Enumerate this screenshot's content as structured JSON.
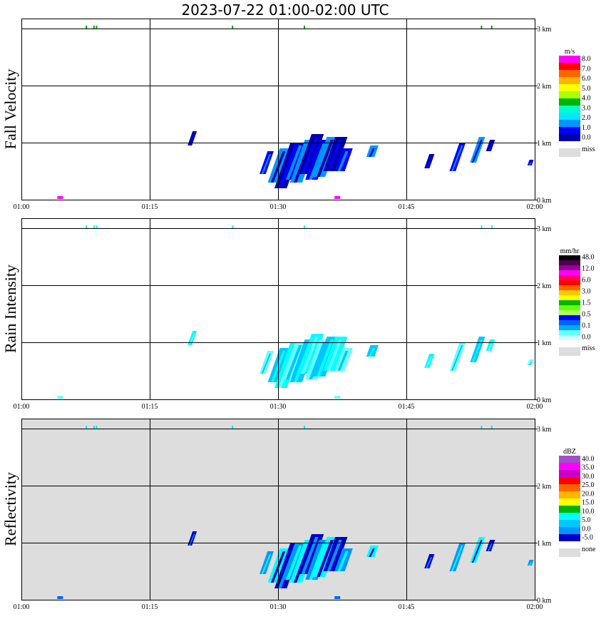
{
  "title": "2023-07-22   01:00-02:00 UTC",
  "chart_data": [
    {
      "type": "heatmap",
      "ylabel": "Fall Velocity",
      "xticks": [
        "01:00",
        "01:15",
        "01:30",
        "01:45",
        "02:00"
      ],
      "yticks": [
        "0 km",
        "1 km",
        "2 km",
        "3 km"
      ],
      "xlim": [
        "01:00",
        "02:00"
      ],
      "ylim_km": [
        0,
        3.2
      ],
      "background": "#ffffff",
      "colorbar": {
        "unit": "m/s",
        "labels": [
          "8.0",
          "7.0",
          "6.0",
          "5.0",
          "4.0",
          "3.0",
          "2.0",
          "1.0",
          "0.0"
        ],
        "colors": [
          "#ff00ff",
          "#ff0000",
          "#ff6400",
          "#ffb400",
          "#ffff00",
          "#aaff00",
          "#00b400",
          "#00ffc8",
          "#00e6ff",
          "#0096ff",
          "#0000ff",
          "#0000aa"
        ],
        "miss_label": "miss",
        "miss_color": "#dddddd"
      },
      "echo_colors": [
        "#0000aa",
        "#0000ff",
        "#0096ff"
      ],
      "top_marks_color": "#00a000",
      "speck_color": "#ff00ff"
    },
    {
      "type": "heatmap",
      "ylabel": "Rain Intensity",
      "xticks": [
        "01:00",
        "01:15",
        "01:30",
        "01:45",
        "02:00"
      ],
      "yticks": [
        "0 km",
        "1 km",
        "2 km",
        "3 km"
      ],
      "xlim": [
        "01:00",
        "02:00"
      ],
      "ylim_km": [
        0,
        3.2
      ],
      "background": "#ffffff",
      "colorbar": {
        "unit": "mm/hr",
        "labels": [
          "48.0",
          "12.0",
          "6.0",
          "3.0",
          "1.5",
          "0.5",
          "0.1",
          "0.0"
        ],
        "colors": [
          "#000000",
          "#500050",
          "#960096",
          "#ff00ff",
          "#ff0064",
          "#ff0000",
          "#ff6400",
          "#ffc800",
          "#ffff00",
          "#00b400",
          "#66ff00",
          "#aaff66",
          "#0000ff",
          "#0064ff",
          "#00aaff",
          "#66ffff",
          "#ccffff"
        ],
        "miss_label": "miss",
        "miss_color": "#dddddd"
      },
      "echo_colors": [
        "#00ffff",
        "#66ffff",
        "#00c8ff"
      ],
      "top_marks_color": "#00ffff",
      "speck_color": "#66ffff"
    },
    {
      "type": "heatmap",
      "ylabel": "Reflectivity",
      "xticks": [
        "01:00",
        "01:15",
        "01:30",
        "01:45",
        "02:00"
      ],
      "yticks": [
        "0 km",
        "1 km",
        "2 km",
        "3 km"
      ],
      "xlim": [
        "01:00",
        "02:00"
      ],
      "ylim_km": [
        0,
        3.2
      ],
      "background": "#dddddd",
      "colorbar": {
        "unit": "dBZ",
        "labels": [
          "40.0",
          "35.0",
          "30.0",
          "25.0",
          "20.0",
          "15.0",
          "10.0",
          "5.0",
          "0.0",
          "-5.0"
        ],
        "colors": [
          "#a050c8",
          "#ff00ff",
          "#c800c8",
          "#ff0000",
          "#ff6400",
          "#ffb400",
          "#ffff00",
          "#00b400",
          "#00ffff",
          "#00c8ff",
          "#0096ff",
          "#0000c8"
        ],
        "miss_label": "none",
        "miss_color": "#dddddd"
      },
      "echo_colors": [
        "#0000c8",
        "#0096ff",
        "#00ffff"
      ],
      "top_marks_color": "#00e6e6",
      "speck_color": "#0064ff"
    }
  ]
}
